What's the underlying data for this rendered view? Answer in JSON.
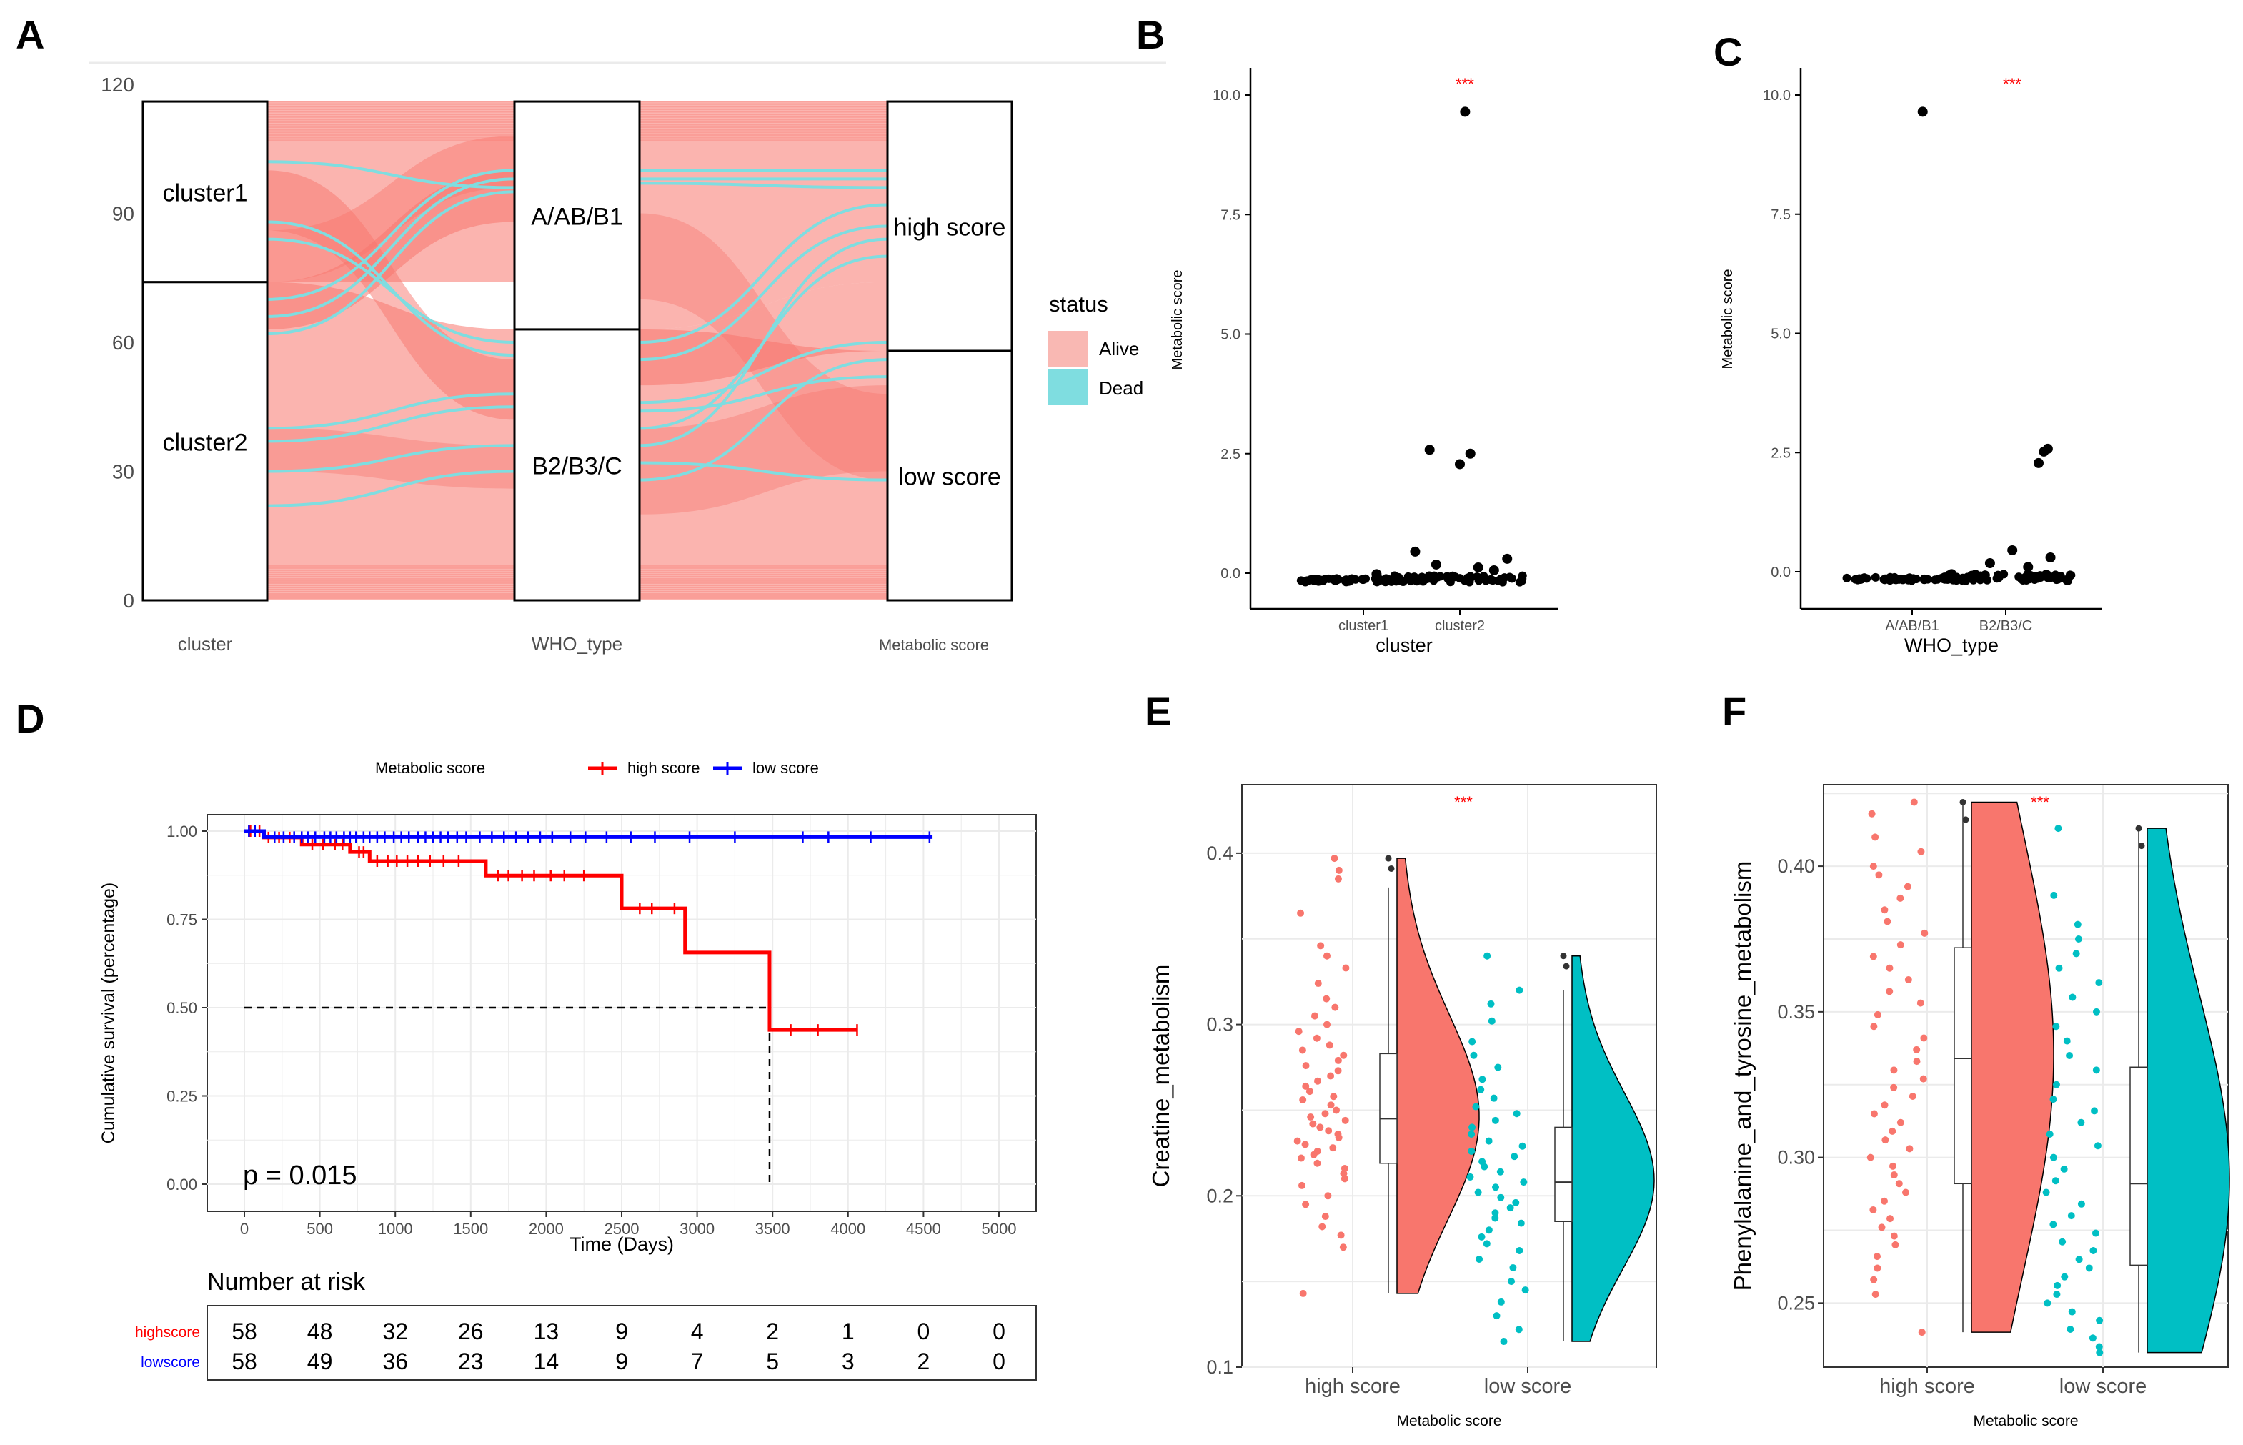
{
  "colors": {
    "alive": "#F8766D",
    "alive_fill": "#F9B8B3",
    "dead": "#00BFC4",
    "dead_line": "#7FDDE0",
    "high": "#FF0000",
    "low": "#0000FF",
    "sig": "#FF0000",
    "text": "#000000",
    "axis_text": "#4D4D4D",
    "grid": "#EBEBEB"
  },
  "panels": [
    {
      "label": "A"
    },
    {
      "label": "B"
    },
    {
      "label": "C"
    },
    {
      "label": "D"
    },
    {
      "label": "E"
    },
    {
      "label": "F"
    }
  ],
  "chart_data": [
    {
      "panel": "A",
      "type": "alluvial",
      "ylim": [
        0,
        120
      ],
      "yticks": [
        "0",
        "30",
        "60",
        "90",
        "120"
      ],
      "axes": [
        "cluster",
        "WHO_type",
        "Metabolic score"
      ],
      "strata": {
        "cluster": [
          {
            "name": "cluster1",
            "count": 42
          },
          {
            "name": "cluster2",
            "count": 74
          }
        ],
        "WHO_type": [
          {
            "name": "A/AB/B1",
            "count": 53
          },
          {
            "name": "B2/B3/C",
            "count": 63
          }
        ],
        "Metabolic score": [
          {
            "name": "high score",
            "count": 58
          },
          {
            "name": "low score",
            "count": 58
          }
        ]
      },
      "legend": {
        "title": "status",
        "items": [
          "Alive",
          "Dead"
        ],
        "position": "right"
      }
    },
    {
      "panel": "B",
      "type": "scatter",
      "xlabel": "cluster",
      "ylabel": "Metabolic score",
      "categories": [
        "cluster1",
        "cluster2"
      ],
      "yticks": [
        "0.0",
        "2.5",
        "5.0",
        "7.5",
        "10.0"
      ],
      "ylim": [
        -0.5,
        10.5
      ],
      "significance": "***",
      "outliers": [
        {
          "category": "cluster2",
          "y": 9.65,
          "jitter": 0.04
        },
        {
          "category": "cluster2",
          "y": 2.58,
          "jitter": -0.23
        },
        {
          "category": "cluster2",
          "y": 2.5,
          "jitter": 0.08
        },
        {
          "category": "cluster2",
          "y": 2.28,
          "jitter": 0.0
        },
        {
          "category": "cluster2",
          "y": 0.45,
          "jitter": -0.34
        },
        {
          "category": "cluster2",
          "y": 0.3,
          "jitter": 0.36
        },
        {
          "category": "cluster2",
          "y": 0.18,
          "jitter": -0.18
        },
        {
          "category": "cluster2",
          "y": 0.12,
          "jitter": 0.14
        },
        {
          "category": "cluster2",
          "y": 0.06,
          "jitter": 0.26
        },
        {
          "category": "cluster1",
          "y": -0.02,
          "jitter": 0.1
        }
      ]
    },
    {
      "panel": "C",
      "type": "scatter",
      "xlabel": "WHO_type",
      "ylabel": "Metabolic score",
      "categories": [
        "A/AB/B1",
        "B2/B3/C"
      ],
      "yticks": [
        "0.0",
        "2.5",
        "5.0",
        "7.5",
        "10.0"
      ],
      "ylim": [
        -0.5,
        10.5
      ],
      "significance": "***",
      "outliers": [
        {
          "category": "A/AB/B1",
          "y": 9.65,
          "jitter": 0.08
        },
        {
          "category": "B2/B3/C",
          "y": 2.58,
          "jitter": 0.32
        },
        {
          "category": "B2/B3/C",
          "y": 2.52,
          "jitter": 0.29
        },
        {
          "category": "B2/B3/C",
          "y": 2.28,
          "jitter": 0.25
        },
        {
          "category": "B2/B3/C",
          "y": 0.45,
          "jitter": 0.05
        },
        {
          "category": "B2/B3/C",
          "y": 0.3,
          "jitter": 0.34
        },
        {
          "category": "B2/B3/C",
          "y": 0.18,
          "jitter": -0.12
        },
        {
          "category": "B2/B3/C",
          "y": 0.1,
          "jitter": 0.17
        },
        {
          "category": "A/AB/B1",
          "y": -0.05,
          "jitter": 0.3
        }
      ]
    },
    {
      "panel": "D",
      "type": "line",
      "subtype": "kaplan-meier",
      "legend_title": "Metabolic score",
      "xlabel": "Time (Days)",
      "ylabel": "Cumulative survival (percentage)",
      "xlim": [
        0,
        5000
      ],
      "ylim": [
        0,
        1
      ],
      "xticks": [
        "0",
        "500",
        "1000",
        "1500",
        "2000",
        "2500",
        "3000",
        "3500",
        "4000",
        "4500",
        "5000"
      ],
      "yticks": [
        "0.00",
        "0.25",
        "0.50",
        "0.75",
        "1.00"
      ],
      "pvalue": "p = 0.015",
      "median_line": {
        "y": 0.5,
        "x": 3480
      },
      "series": [
        {
          "name": "high score",
          "color_key": "high",
          "steps": [
            [
              0,
              1.0
            ],
            [
              130,
              0.982
            ],
            [
              380,
              0.962
            ],
            [
              700,
              0.941
            ],
            [
              830,
              0.915
            ],
            [
              1600,
              0.874
            ],
            [
              2500,
              0.781
            ],
            [
              2920,
              0.656
            ],
            [
              3480,
              0.437
            ],
            [
              4060,
              0.437
            ]
          ],
          "censor": [
            40,
            100,
            160,
            230,
            300,
            450,
            520,
            600,
            650,
            760,
            790,
            880,
            950,
            1010,
            1080,
            1150,
            1230,
            1320,
            1420,
            1680,
            1750,
            1840,
            1920,
            2030,
            2120,
            2250,
            2620,
            2700,
            2850,
            3620,
            3800,
            4060
          ]
        },
        {
          "name": "low score",
          "color_key": "low",
          "steps": [
            [
              0,
              1.0
            ],
            [
              130,
              0.983
            ],
            [
              4560,
              0.983
            ]
          ],
          "censor": [
            30,
            70,
            200,
            260,
            330,
            380,
            420,
            470,
            530,
            570,
            610,
            660,
            700,
            740,
            790,
            830,
            880,
            930,
            990,
            1040,
            1090,
            1150,
            1200,
            1250,
            1300,
            1350,
            1410,
            1470,
            1560,
            1640,
            1720,
            1800,
            1880,
            1960,
            2040,
            2160,
            2260,
            2400,
            2560,
            2720,
            2950,
            3250,
            3700,
            3870,
            4150,
            4540
          ]
        }
      ],
      "risk_table": {
        "title": "Number at risk",
        "rows": [
          {
            "label": "highscore",
            "color_key": "high",
            "values": [
              "58",
              "48",
              "32",
              "26",
              "13",
              "9",
              "4",
              "2",
              "1",
              "0",
              "0"
            ]
          },
          {
            "label": "lowscore",
            "color_key": "low",
            "values": [
              "58",
              "49",
              "36",
              "23",
              "14",
              "9",
              "7",
              "5",
              "3",
              "2",
              "0"
            ]
          }
        ]
      }
    },
    {
      "panel": "E",
      "type": "raincloud",
      "xlabel": "Metabolic score",
      "ylabel": "Creatine_metabolism",
      "categories": [
        "high score",
        "low score"
      ],
      "ylim": [
        0.1,
        0.44
      ],
      "yticks": [
        "0.1",
        "0.2",
        "0.3",
        "0.4"
      ],
      "significance": "***",
      "groups": [
        {
          "name": "high score",
          "color_key": "alive",
          "q1": 0.219,
          "median": 0.245,
          "q3": 0.283,
          "whisker_low": 0.143,
          "whisker_high": 0.38,
          "max": 0.397,
          "points": [
            0.397,
            0.39,
            0.385,
            0.365,
            0.346,
            0.34,
            0.333,
            0.324,
            0.315,
            0.31,
            0.305,
            0.3,
            0.296,
            0.292,
            0.288,
            0.285,
            0.282,
            0.279,
            0.276,
            0.273,
            0.27,
            0.267,
            0.264,
            0.261,
            0.258,
            0.256,
            0.253,
            0.25,
            0.248,
            0.246,
            0.244,
            0.242,
            0.24,
            0.238,
            0.236,
            0.234,
            0.232,
            0.23,
            0.228,
            0.226,
            0.224,
            0.222,
            0.219,
            0.216,
            0.213,
            0.21,
            0.206,
            0.2,
            0.195,
            0.188,
            0.182,
            0.177,
            0.17,
            0.143
          ]
        },
        {
          "name": "low score",
          "color_key": "dead",
          "q1": 0.185,
          "median": 0.208,
          "q3": 0.24,
          "whisker_low": 0.115,
          "whisker_high": 0.32,
          "max": 0.34,
          "points": [
            0.34,
            0.32,
            0.312,
            0.302,
            0.29,
            0.282,
            0.275,
            0.268,
            0.262,
            0.257,
            0.252,
            0.248,
            0.244,
            0.24,
            0.236,
            0.232,
            0.229,
            0.226,
            0.223,
            0.22,
            0.217,
            0.214,
            0.211,
            0.208,
            0.205,
            0.202,
            0.199,
            0.196,
            0.193,
            0.19,
            0.187,
            0.184,
            0.18,
            0.176,
            0.172,
            0.168,
            0.163,
            0.158,
            0.15,
            0.145,
            0.138,
            0.13,
            0.122,
            0.115
          ]
        }
      ]
    },
    {
      "panel": "F",
      "type": "raincloud",
      "xlabel": "Metabolic score",
      "ylabel": "Phenylalanine_and_tyrosine_metabolism",
      "categories": [
        "high score",
        "low score"
      ],
      "ylim": [
        0.228,
        0.428
      ],
      "yticks": [
        "0.25",
        "0.30",
        "0.35",
        "0.40"
      ],
      "significance": "***",
      "groups": [
        {
          "name": "high score",
          "color_key": "alive",
          "q1": 0.291,
          "median": 0.334,
          "q3": 0.372,
          "whisker_low": 0.24,
          "whisker_high": 0.422,
          "max": 0.422,
          "points": [
            0.422,
            0.418,
            0.41,
            0.405,
            0.4,
            0.397,
            0.393,
            0.389,
            0.385,
            0.381,
            0.377,
            0.373,
            0.369,
            0.365,
            0.361,
            0.357,
            0.353,
            0.349,
            0.345,
            0.341,
            0.337,
            0.333,
            0.33,
            0.327,
            0.324,
            0.321,
            0.318,
            0.315,
            0.312,
            0.309,
            0.306,
            0.303,
            0.3,
            0.297,
            0.294,
            0.291,
            0.288,
            0.285,
            0.282,
            0.279,
            0.276,
            0.273,
            0.27,
            0.266,
            0.262,
            0.258,
            0.253,
            0.24
          ]
        },
        {
          "name": "low score",
          "color_key": "dead",
          "q1": 0.263,
          "median": 0.291,
          "q3": 0.331,
          "whisker_low": 0.233,
          "whisker_high": 0.413,
          "max": 0.413,
          "points": [
            0.413,
            0.39,
            0.38,
            0.375,
            0.37,
            0.365,
            0.36,
            0.355,
            0.35,
            0.345,
            0.34,
            0.335,
            0.33,
            0.325,
            0.32,
            0.316,
            0.312,
            0.308,
            0.304,
            0.3,
            0.296,
            0.292,
            0.288,
            0.284,
            0.28,
            0.277,
            0.274,
            0.271,
            0.268,
            0.265,
            0.262,
            0.259,
            0.256,
            0.253,
            0.25,
            0.247,
            0.244,
            0.241,
            0.238,
            0.235,
            0.233
          ]
        }
      ]
    }
  ]
}
